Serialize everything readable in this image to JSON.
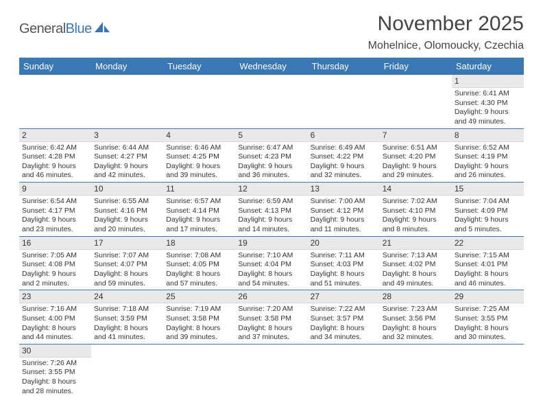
{
  "logo": {
    "part1": "General",
    "part2": "Blue"
  },
  "title": "November 2025",
  "location": "Mohelnice, Olomoucky, Czechia",
  "styling": {
    "header_bg": "#3a78b5",
    "header_text_color": "#ffffff",
    "daynum_bg": "#e9e9e9",
    "border_color": "#3a78b5",
    "page_bg": "#ffffff",
    "title_fontsize": 30,
    "location_fontsize": 16,
    "dayheader_fontsize": 13,
    "daybody_fontsize": 10.5
  },
  "weekdays": [
    "Sunday",
    "Monday",
    "Tuesday",
    "Wednesday",
    "Thursday",
    "Friday",
    "Saturday"
  ],
  "days": {
    "1": {
      "sunrise": "6:41 AM",
      "sunset": "4:30 PM",
      "daylight": "9 hours and 49 minutes."
    },
    "2": {
      "sunrise": "6:42 AM",
      "sunset": "4:28 PM",
      "daylight": "9 hours and 46 minutes."
    },
    "3": {
      "sunrise": "6:44 AM",
      "sunset": "4:27 PM",
      "daylight": "9 hours and 42 minutes."
    },
    "4": {
      "sunrise": "6:46 AM",
      "sunset": "4:25 PM",
      "daylight": "9 hours and 39 minutes."
    },
    "5": {
      "sunrise": "6:47 AM",
      "sunset": "4:23 PM",
      "daylight": "9 hours and 36 minutes."
    },
    "6": {
      "sunrise": "6:49 AM",
      "sunset": "4:22 PM",
      "daylight": "9 hours and 32 minutes."
    },
    "7": {
      "sunrise": "6:51 AM",
      "sunset": "4:20 PM",
      "daylight": "9 hours and 29 minutes."
    },
    "8": {
      "sunrise": "6:52 AM",
      "sunset": "4:19 PM",
      "daylight": "9 hours and 26 minutes."
    },
    "9": {
      "sunrise": "6:54 AM",
      "sunset": "4:17 PM",
      "daylight": "9 hours and 23 minutes."
    },
    "10": {
      "sunrise": "6:55 AM",
      "sunset": "4:16 PM",
      "daylight": "9 hours and 20 minutes."
    },
    "11": {
      "sunrise": "6:57 AM",
      "sunset": "4:14 PM",
      "daylight": "9 hours and 17 minutes."
    },
    "12": {
      "sunrise": "6:59 AM",
      "sunset": "4:13 PM",
      "daylight": "9 hours and 14 minutes."
    },
    "13": {
      "sunrise": "7:00 AM",
      "sunset": "4:12 PM",
      "daylight": "9 hours and 11 minutes."
    },
    "14": {
      "sunrise": "7:02 AM",
      "sunset": "4:10 PM",
      "daylight": "9 hours and 8 minutes."
    },
    "15": {
      "sunrise": "7:04 AM",
      "sunset": "4:09 PM",
      "daylight": "9 hours and 5 minutes."
    },
    "16": {
      "sunrise": "7:05 AM",
      "sunset": "4:08 PM",
      "daylight": "9 hours and 2 minutes."
    },
    "17": {
      "sunrise": "7:07 AM",
      "sunset": "4:07 PM",
      "daylight": "8 hours and 59 minutes."
    },
    "18": {
      "sunrise": "7:08 AM",
      "sunset": "4:05 PM",
      "daylight": "8 hours and 57 minutes."
    },
    "19": {
      "sunrise": "7:10 AM",
      "sunset": "4:04 PM",
      "daylight": "8 hours and 54 minutes."
    },
    "20": {
      "sunrise": "7:11 AM",
      "sunset": "4:03 PM",
      "daylight": "8 hours and 51 minutes."
    },
    "21": {
      "sunrise": "7:13 AM",
      "sunset": "4:02 PM",
      "daylight": "8 hours and 49 minutes."
    },
    "22": {
      "sunrise": "7:15 AM",
      "sunset": "4:01 PM",
      "daylight": "8 hours and 46 minutes."
    },
    "23": {
      "sunrise": "7:16 AM",
      "sunset": "4:00 PM",
      "daylight": "8 hours and 44 minutes."
    },
    "24": {
      "sunrise": "7:18 AM",
      "sunset": "3:59 PM",
      "daylight": "8 hours and 41 minutes."
    },
    "25": {
      "sunrise": "7:19 AM",
      "sunset": "3:58 PM",
      "daylight": "8 hours and 39 minutes."
    },
    "26": {
      "sunrise": "7:20 AM",
      "sunset": "3:58 PM",
      "daylight": "8 hours and 37 minutes."
    },
    "27": {
      "sunrise": "7:22 AM",
      "sunset": "3:57 PM",
      "daylight": "8 hours and 34 minutes."
    },
    "28": {
      "sunrise": "7:23 AM",
      "sunset": "3:56 PM",
      "daylight": "8 hours and 32 minutes."
    },
    "29": {
      "sunrise": "7:25 AM",
      "sunset": "3:55 PM",
      "daylight": "8 hours and 30 minutes."
    },
    "30": {
      "sunrise": "7:26 AM",
      "sunset": "3:55 PM",
      "daylight": "8 hours and 28 minutes."
    }
  },
  "labels": {
    "sunrise": "Sunrise:",
    "sunset": "Sunset:",
    "daylight": "Daylight:"
  },
  "layout": {
    "first_weekday_index": 6,
    "num_days": 30
  }
}
